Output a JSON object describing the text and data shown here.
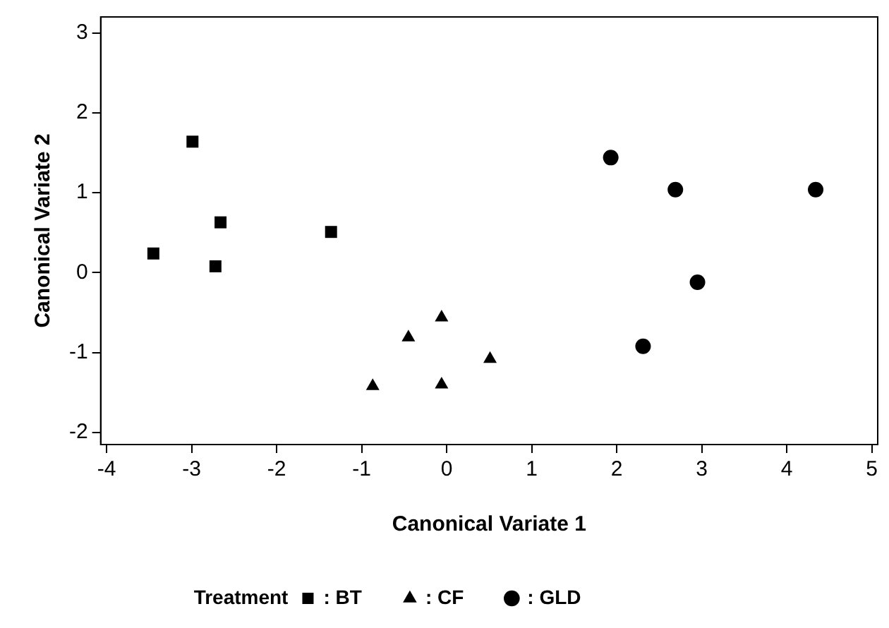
{
  "chart_data": {
    "type": "scatter",
    "xlabel": "Canonical Variate 1",
    "ylabel": "Canonical Variate 2",
    "legend_title": "Treatment",
    "legend": "bottom",
    "grid": false,
    "xlim": [
      -4.07,
      5.07
    ],
    "xticks": [
      -4,
      -3,
      -2,
      -1,
      0,
      1,
      2,
      3,
      4,
      5
    ],
    "ylim": [
      -2.15,
      3.2
    ],
    "yticks": [
      -2,
      -1,
      0,
      1,
      2,
      3
    ],
    "series": [
      {
        "name": ": BT",
        "color": "#000000",
        "marker": "square",
        "x": [
          -2.99,
          -3.45,
          -2.66,
          -2.72,
          -1.36
        ],
        "values": [
          1.64,
          0.24,
          0.63,
          0.08,
          0.51
        ]
      },
      {
        "name": ": CF",
        "color": "#000000",
        "marker": "triangle",
        "x": [
          -0.87,
          -0.45,
          -0.06,
          -0.06,
          0.51
        ],
        "values": [
          -1.42,
          -0.81,
          -0.56,
          -1.4,
          -1.08
        ]
      },
      {
        "name": ": GLD",
        "color": "#000000",
        "marker": "circle",
        "x": [
          1.93,
          2.69,
          4.34,
          2.95,
          2.31
        ],
        "values": [
          1.44,
          1.04,
          1.04,
          -0.12,
          -0.92
        ]
      }
    ]
  }
}
